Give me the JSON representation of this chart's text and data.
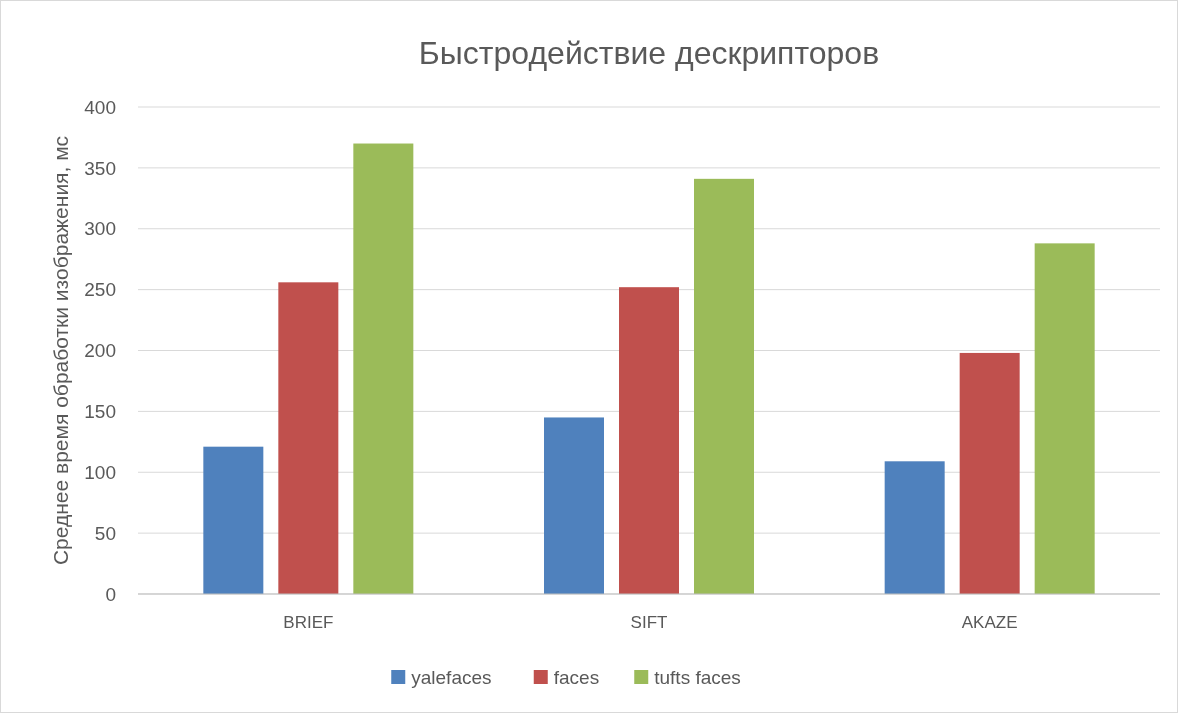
{
  "chart_data": {
    "type": "bar",
    "title": "Быстродействие дескрипторов",
    "ylabel": "Среднее время обработки изображения, мс",
    "categories": [
      "BRIEF",
      "SIFT",
      "AKAZE"
    ],
    "series": [
      {
        "name": "yalefaces",
        "color": "#4f81bd",
        "values": [
          121,
          145,
          109
        ]
      },
      {
        "name": "faces",
        "color": "#c0504d",
        "values": [
          256,
          252,
          198
        ]
      },
      {
        "name": "tufts faces",
        "color": "#9bbb59",
        "values": [
          370,
          341,
          288
        ]
      }
    ],
    "ylim": [
      0,
      400
    ],
    "yticks": [
      0,
      50,
      100,
      150,
      200,
      250,
      300,
      350,
      400
    ],
    "grid": "y",
    "legend": "bottom"
  }
}
